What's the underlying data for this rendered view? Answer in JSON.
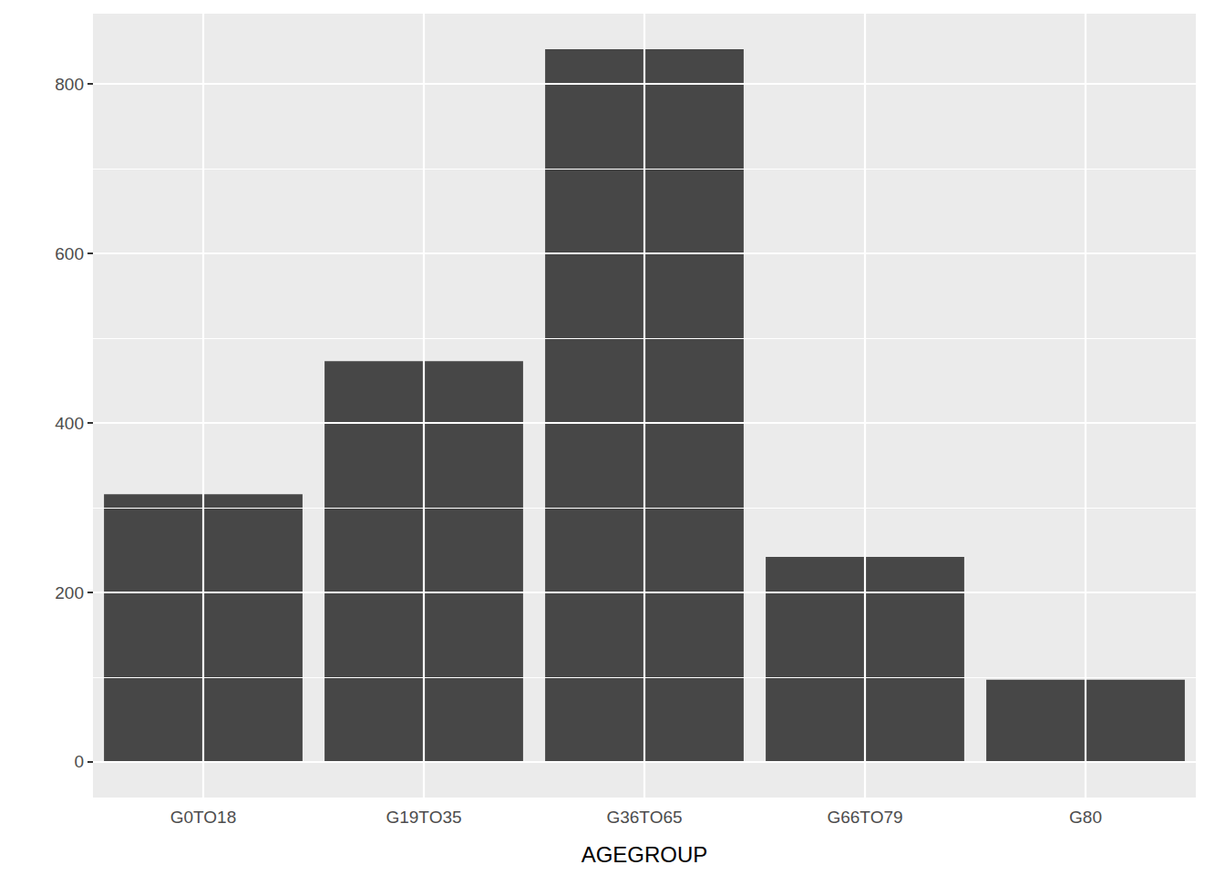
{
  "chart_data": {
    "type": "bar",
    "x_label": "AGEGROUP",
    "categories": [
      "G0TO18",
      "G19TO35",
      "G36TO65",
      "G66TO79",
      "G80"
    ],
    "values": [
      316,
      473,
      841,
      242,
      97
    ],
    "color": "#474747",
    "ylim": [
      -42,
      883
    ],
    "yticks": [
      0,
      200,
      400,
      600,
      800
    ],
    "grid": true
  }
}
